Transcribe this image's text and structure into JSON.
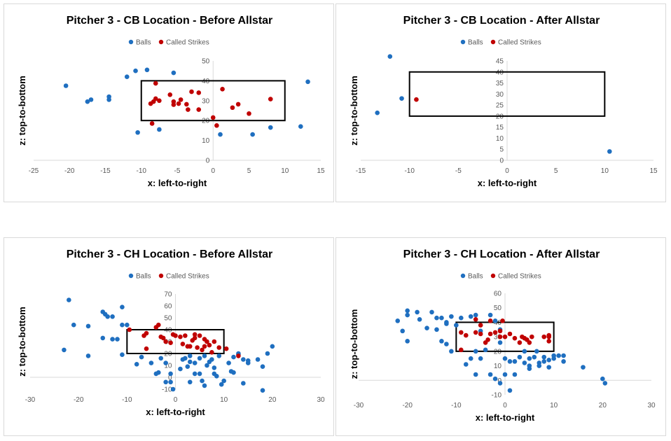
{
  "colors": {
    "balls": "#1f6fc0",
    "called_strikes": "#c00000",
    "zone": "#000000"
  },
  "chart_data": [
    {
      "type": "scatter",
      "title": "Pitcher 3 - CB Location - Before Allstar",
      "xlabel": "x: left-to-right",
      "ylabel": "z: top-to-bottom",
      "xlim": [
        -25,
        15
      ],
      "xticks": [
        -25,
        -20,
        -15,
        -10,
        -5,
        0,
        5,
        10,
        15
      ],
      "ylim": [
        0,
        50
      ],
      "yticks": [
        0,
        10,
        20,
        30,
        40,
        50
      ],
      "grid": false,
      "legend": "top-center",
      "strike_zone": {
        "x": [
          -10,
          10
        ],
        "z": [
          20,
          40
        ]
      },
      "series": [
        {
          "name": "Balls",
          "points": [
            [
              -20.5,
              37.5
            ],
            [
              -17.5,
              29.5
            ],
            [
              -17,
              30.5
            ],
            [
              -14.5,
              32
            ],
            [
              -14.5,
              30.5
            ],
            [
              -12,
              42
            ],
            [
              -10.8,
              45
            ],
            [
              -9.2,
              45.5
            ],
            [
              -5.5,
              44
            ],
            [
              -10.5,
              14
            ],
            [
              -7.5,
              15.5
            ],
            [
              1,
              13
            ],
            [
              5.5,
              13
            ],
            [
              8,
              16.5
            ],
            [
              12.2,
              17
            ],
            [
              13.2,
              39.5
            ]
          ]
        },
        {
          "name": "Called Strikes",
          "points": [
            [
              -8,
              38.7
            ],
            [
              -8,
              31
            ],
            [
              -8.3,
              29.5
            ],
            [
              -8.7,
              28.5
            ],
            [
              -7.5,
              30
            ],
            [
              -6,
              33
            ],
            [
              -5.5,
              29.5
            ],
            [
              -5.5,
              28
            ],
            [
              -4.8,
              28.5
            ],
            [
              -4.5,
              30.5
            ],
            [
              -3.7,
              28.2
            ],
            [
              -3.5,
              25.5
            ],
            [
              -3,
              34.5
            ],
            [
              -2,
              34
            ],
            [
              -2,
              25.5
            ],
            [
              1.3,
              35.8
            ],
            [
              2.7,
              26.5
            ],
            [
              3.5,
              28.2
            ],
            [
              5,
              23.5
            ],
            [
              8,
              30.8
            ],
            [
              0,
              21.5
            ],
            [
              0.5,
              17.5
            ],
            [
              -8.5,
              18.5
            ]
          ]
        }
      ]
    },
    {
      "type": "scatter",
      "title": "Pitcher 3 - CB Location - After Allstar",
      "xlabel": "x: left-to-right",
      "ylabel": "z: top-to-bottom",
      "xlim": [
        -15,
        15
      ],
      "xticks": [
        -15,
        -10,
        -5,
        0,
        5,
        10,
        15
      ],
      "ylim": [
        0,
        45
      ],
      "yticks": [
        0,
        5,
        10,
        15,
        20,
        25,
        30,
        35,
        40,
        45
      ],
      "grid": false,
      "legend": "top-center",
      "strike_zone": {
        "x": [
          -10,
          10
        ],
        "z": [
          20,
          40
        ]
      },
      "series": [
        {
          "name": "Balls",
          "points": [
            [
              -12,
              47
            ],
            [
              -10.8,
              28
            ],
            [
              -13.3,
              21.5
            ],
            [
              10.5,
              4
            ]
          ]
        },
        {
          "name": "Called Strikes",
          "points": [
            [
              -9.3,
              27.5
            ]
          ]
        }
      ]
    },
    {
      "type": "scatter",
      "title": "Pitcher 3 - CH Location - Before Allstar",
      "xlabel": "x: left-to-right",
      "ylabel": "z: top-to-bottom",
      "xlim": [
        -30,
        30
      ],
      "xticks": [
        -30,
        -20,
        -10,
        0,
        10,
        20,
        30
      ],
      "ylim": [
        -10,
        70
      ],
      "yticks": [
        -10,
        0,
        10,
        20,
        30,
        40,
        50,
        60,
        70
      ],
      "grid": false,
      "legend": "top-center",
      "strike_zone": {
        "x": [
          -10,
          10
        ],
        "z": [
          20,
          40
        ]
      },
      "series": [
        {
          "name": "Balls",
          "points": [
            [
              -22,
              65
            ],
            [
              -21,
              44
            ],
            [
              -23,
              23
            ],
            [
              -18,
              43
            ],
            [
              -18,
              18
            ],
            [
              -15,
              55
            ],
            [
              -14.5,
              53
            ],
            [
              -14,
              51
            ],
            [
              -13,
              51
            ],
            [
              -15,
              33
            ],
            [
              -13,
              32
            ],
            [
              -12,
              32
            ],
            [
              -11,
              59
            ],
            [
              -11,
              44
            ],
            [
              -10,
              44
            ],
            [
              -11,
              19
            ],
            [
              -7,
              17
            ],
            [
              -8,
              11
            ],
            [
              -5,
              12
            ],
            [
              -3,
              16
            ],
            [
              -4,
              3
            ],
            [
              -3.5,
              4
            ],
            [
              -2,
              12
            ],
            [
              -1,
              3
            ],
            [
              -1,
              -4
            ],
            [
              -0.5,
              -10
            ],
            [
              1,
              7
            ],
            [
              1.5,
              15
            ],
            [
              2,
              16
            ],
            [
              2.5,
              9
            ],
            [
              3,
              13
            ],
            [
              3,
              18
            ],
            [
              4,
              3
            ],
            [
              4,
              12
            ],
            [
              5,
              16
            ],
            [
              5,
              3
            ],
            [
              5.5,
              -3
            ],
            [
              6,
              18
            ],
            [
              6.5,
              10
            ],
            [
              7,
              13
            ],
            [
              7.5,
              15
            ],
            [
              8,
              8
            ],
            [
              8,
              3
            ],
            [
              8.5,
              1
            ],
            [
              9,
              18
            ],
            [
              9.5,
              -6
            ],
            [
              10,
              -3
            ],
            [
              11,
              12
            ],
            [
              11.5,
              5
            ],
            [
              12,
              4
            ],
            [
              12,
              17
            ],
            [
              13,
              20
            ],
            [
              13,
              19
            ],
            [
              14,
              -5
            ],
            [
              14,
              15
            ],
            [
              15,
              12
            ],
            [
              15,
              14
            ],
            [
              17,
              15
            ],
            [
              18,
              9
            ],
            [
              18,
              -11
            ],
            [
              19,
              20
            ],
            [
              20,
              26
            ],
            [
              -2,
              -4
            ],
            [
              3,
              -4
            ],
            [
              6,
              -7
            ]
          ]
        },
        {
          "name": "Called Strikes",
          "points": [
            [
              -9.5,
              40
            ],
            [
              -6.5,
              35
            ],
            [
              -6,
              37
            ],
            [
              -6,
              24
            ],
            [
              -4,
              42
            ],
            [
              -3.5,
              44
            ],
            [
              -3,
              34
            ],
            [
              -2.5,
              33
            ],
            [
              -2,
              30
            ],
            [
              -1,
              29
            ],
            [
              -0.5,
              36
            ],
            [
              0,
              35
            ],
            [
              1,
              34
            ],
            [
              1.5,
              28
            ],
            [
              2,
              35
            ],
            [
              2.5,
              26
            ],
            [
              3,
              26
            ],
            [
              3.5,
              31
            ],
            [
              4,
              33
            ],
            [
              4,
              36
            ],
            [
              4.5,
              25
            ],
            [
              5,
              35
            ],
            [
              5.5,
              23
            ],
            [
              6,
              32
            ],
            [
              6,
              26
            ],
            [
              6.5,
              30
            ],
            [
              7,
              27
            ],
            [
              7.5,
              21
            ],
            [
              8,
              30
            ],
            [
              9,
              25
            ],
            [
              10.5,
              24
            ],
            [
              13,
              18
            ]
          ]
        }
      ]
    },
    {
      "type": "scatter",
      "title": "Pitcher 3 - CH Location - After Allstar",
      "xlabel": "x: left-to-right",
      "ylabel": "z: top-to-bottom",
      "xlim": [
        -30,
        30
      ],
      "xticks": [
        -30,
        -20,
        -10,
        0,
        10,
        20,
        30
      ],
      "ylim": [
        -10,
        60
      ],
      "yticks": [
        -10,
        0,
        10,
        20,
        30,
        40,
        50,
        60
      ],
      "grid": false,
      "legend": "top-center",
      "strike_zone": {
        "x": [
          -10,
          10
        ],
        "z": [
          20,
          40
        ]
      },
      "series": [
        {
          "name": "Balls",
          "points": [
            [
              -22,
              41
            ],
            [
              -21,
              34
            ],
            [
              -20,
              48
            ],
            [
              -20,
              45
            ],
            [
              -20,
              27
            ],
            [
              -18,
              47
            ],
            [
              -17.5,
              42
            ],
            [
              -16,
              36
            ],
            [
              -15,
              47
            ],
            [
              -14,
              43
            ],
            [
              -14,
              35
            ],
            [
              -13,
              43
            ],
            [
              -13,
              27
            ],
            [
              -12,
              25
            ],
            [
              -12,
              39
            ],
            [
              -12,
              40
            ],
            [
              -11,
              20
            ],
            [
              -11,
              44
            ],
            [
              -10,
              38
            ],
            [
              -9,
              43
            ],
            [
              -7,
              44
            ],
            [
              -6,
              45
            ],
            [
              -6,
              20
            ],
            [
              -5,
              15
            ],
            [
              -5,
              34
            ],
            [
              -4,
              21
            ],
            [
              -3,
              45
            ],
            [
              -2,
              41
            ],
            [
              -1,
              35
            ],
            [
              -1,
              26
            ],
            [
              0,
              15
            ],
            [
              0,
              4
            ],
            [
              1,
              13
            ],
            [
              1,
              -7
            ],
            [
              2,
              13
            ],
            [
              2,
              4
            ],
            [
              3,
              16
            ],
            [
              4,
              12
            ],
            [
              4,
              20
            ],
            [
              5,
              15
            ],
            [
              5,
              8
            ],
            [
              5,
              10
            ],
            [
              6,
              16
            ],
            [
              6.5,
              20
            ],
            [
              7,
              12
            ],
            [
              7,
              10
            ],
            [
              8,
              16
            ],
            [
              8,
              13
            ],
            [
              9,
              14
            ],
            [
              9,
              9
            ],
            [
              10,
              17
            ],
            [
              10,
              15
            ],
            [
              11,
              17
            ],
            [
              12,
              17
            ],
            [
              12,
              13
            ],
            [
              16,
              9
            ],
            [
              20,
              1
            ],
            [
              20.5,
              -2
            ],
            [
              -8,
              11
            ],
            [
              -7,
              15
            ],
            [
              -6,
              4
            ],
            [
              -3,
              4
            ],
            [
              -2,
              1
            ],
            [
              -1,
              -2
            ]
          ]
        },
        {
          "name": "Called Strikes",
          "points": [
            [
              -9,
              33
            ],
            [
              -9,
              21
            ],
            [
              -8,
              31
            ],
            [
              -6,
              42
            ],
            [
              -6,
              33
            ],
            [
              -5,
              38
            ],
            [
              -5,
              32
            ],
            [
              -4,
              26
            ],
            [
              -3.5,
              28
            ],
            [
              -3,
              32
            ],
            [
              -3,
              41
            ],
            [
              -2,
              33
            ],
            [
              -1,
              30
            ],
            [
              -1,
              34
            ],
            [
              -0.5,
              41
            ],
            [
              0,
              30
            ],
            [
              1,
              32
            ],
            [
              2,
              29
            ],
            [
              3,
              26
            ],
            [
              3.5,
              30
            ],
            [
              4,
              29
            ],
            [
              4.5,
              28
            ],
            [
              5,
              26
            ],
            [
              5.5,
              30
            ],
            [
              8,
              30
            ],
            [
              9,
              27
            ],
            [
              9,
              31
            ],
            [
              9,
              30
            ]
          ]
        }
      ]
    }
  ]
}
